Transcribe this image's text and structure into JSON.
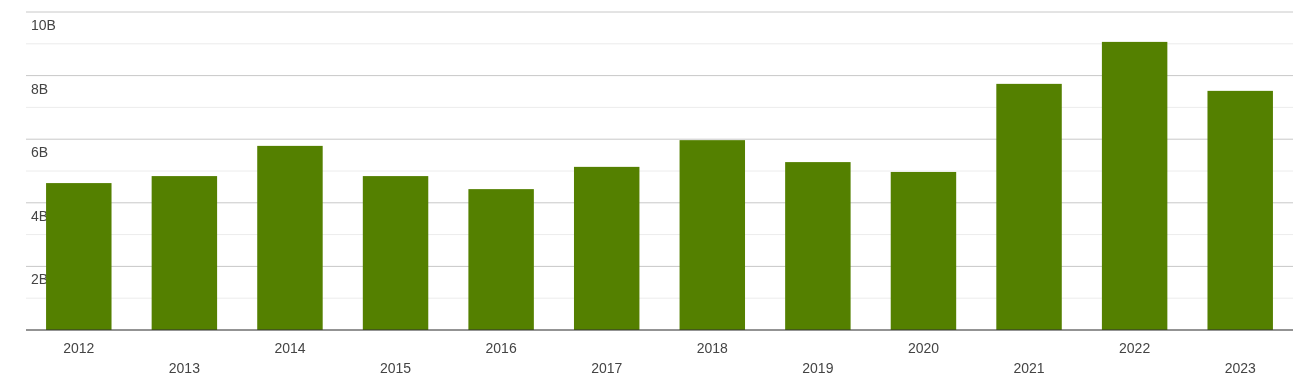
{
  "chart_data": {
    "type": "bar",
    "categories": [
      "2012",
      "2013",
      "2014",
      "2015",
      "2016",
      "2017",
      "2018",
      "2019",
      "2020",
      "2021",
      "2022",
      "2023"
    ],
    "values": [
      4.62,
      4.84,
      5.79,
      4.84,
      4.43,
      5.13,
      5.97,
      5.28,
      4.97,
      7.74,
      9.06,
      7.52
    ],
    "color": "#548000",
    "ylim": [
      0,
      10
    ],
    "yticks": [
      {
        "value": 0,
        "label": null
      },
      {
        "value": 1,
        "label": null
      },
      {
        "value": 2,
        "label": "2B"
      },
      {
        "value": 3,
        "label": null
      },
      {
        "value": 4,
        "label": "4B"
      },
      {
        "value": 5,
        "label": null
      },
      {
        "value": 6,
        "label": "6B"
      },
      {
        "value": 7,
        "label": null
      },
      {
        "value": 8,
        "label": "8B"
      },
      {
        "value": 9,
        "label": null
      },
      {
        "value": 10,
        "label": "10B"
      }
    ],
    "grid": true
  }
}
